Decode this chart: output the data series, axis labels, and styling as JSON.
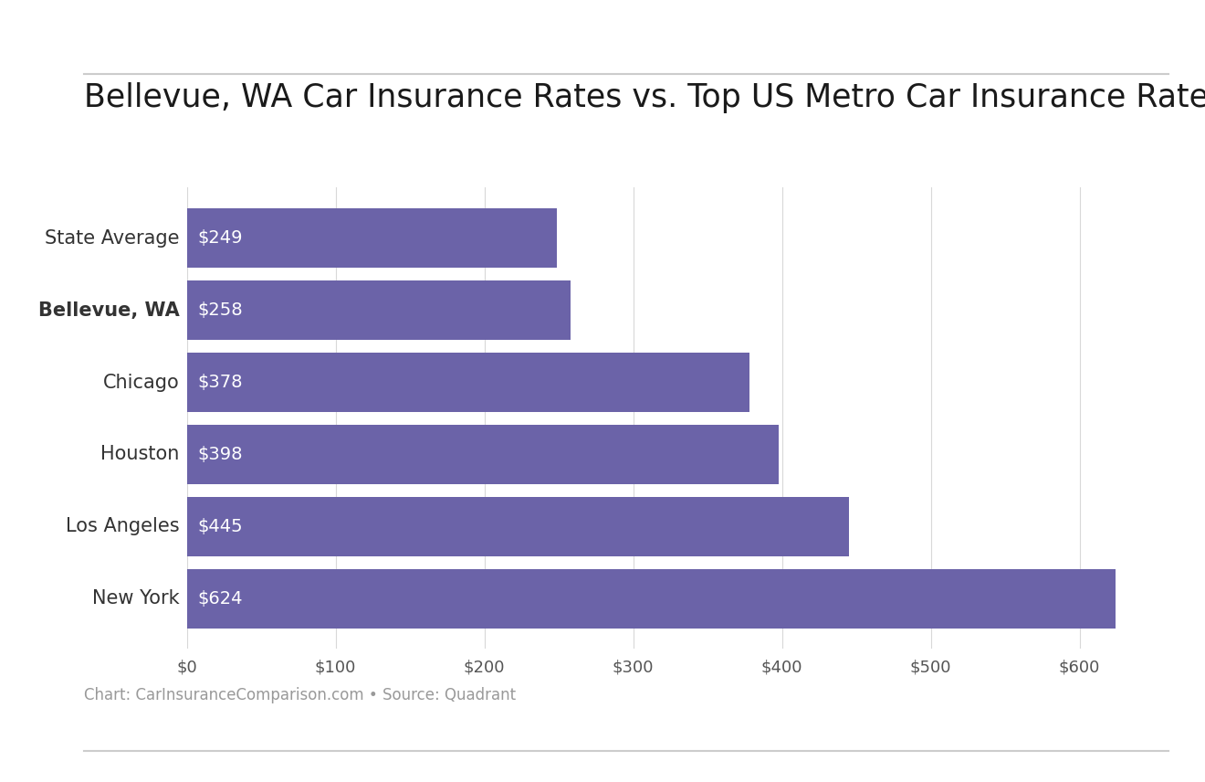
{
  "title": "Bellevue, WA Car Insurance Rates vs. Top US Metro Car Insurance Rates",
  "categories": [
    "State Average",
    "Bellevue, WA",
    "Chicago",
    "Houston",
    "Los Angeles",
    "New York"
  ],
  "values": [
    249,
    258,
    378,
    398,
    445,
    624
  ],
  "bar_color": "#6b63a8",
  "bar_labels": [
    "$249",
    "$258",
    "$378",
    "$398",
    "$445",
    "$624"
  ],
  "bold_category": "Bellevue, WA",
  "xlim": [
    0,
    660
  ],
  "xticks": [
    0,
    100,
    200,
    300,
    400,
    500,
    600
  ],
  "xtick_labels": [
    "$0",
    "$100",
    "$200",
    "$300",
    "$400",
    "$500",
    "$600"
  ],
  "footnote": "Chart: CarInsuranceComparison.com • Source: Quadrant",
  "background_color": "#ffffff",
  "top_line_color": "#cccccc",
  "bottom_line_color": "#cccccc",
  "title_fontsize": 25,
  "bar_label_fontsize": 14,
  "tick_fontsize": 13,
  "ytick_fontsize": 15,
  "footnote_fontsize": 12,
  "bar_height": 0.82
}
